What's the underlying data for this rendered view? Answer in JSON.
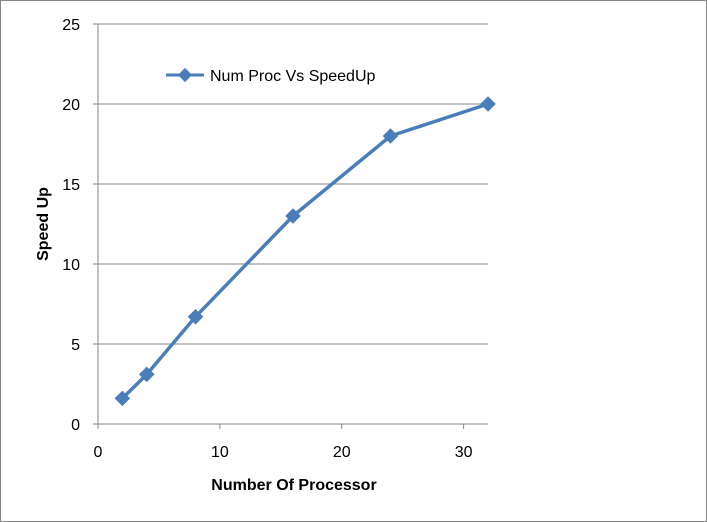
{
  "chart_data": {
    "type": "line",
    "title": "",
    "xlabel": "Number Of Processor",
    "ylabel": "Speed Up",
    "xlim": [
      0,
      32
    ],
    "ylim": [
      0,
      25
    ],
    "x_ticks": [
      "0",
      "10",
      "20",
      "30"
    ],
    "y_ticks": [
      "0",
      "5",
      "10",
      "15",
      "20",
      "25"
    ],
    "grid": "horizontal",
    "legend_position": "top-left",
    "series": [
      {
        "name": "Num Proc Vs SpeedUp",
        "color": "#4a7ebb",
        "marker": "diamond",
        "x": [
          2,
          4,
          8,
          16,
          24,
          32
        ],
        "y": [
          1.6,
          3.1,
          6.7,
          13,
          18,
          20
        ]
      }
    ]
  }
}
